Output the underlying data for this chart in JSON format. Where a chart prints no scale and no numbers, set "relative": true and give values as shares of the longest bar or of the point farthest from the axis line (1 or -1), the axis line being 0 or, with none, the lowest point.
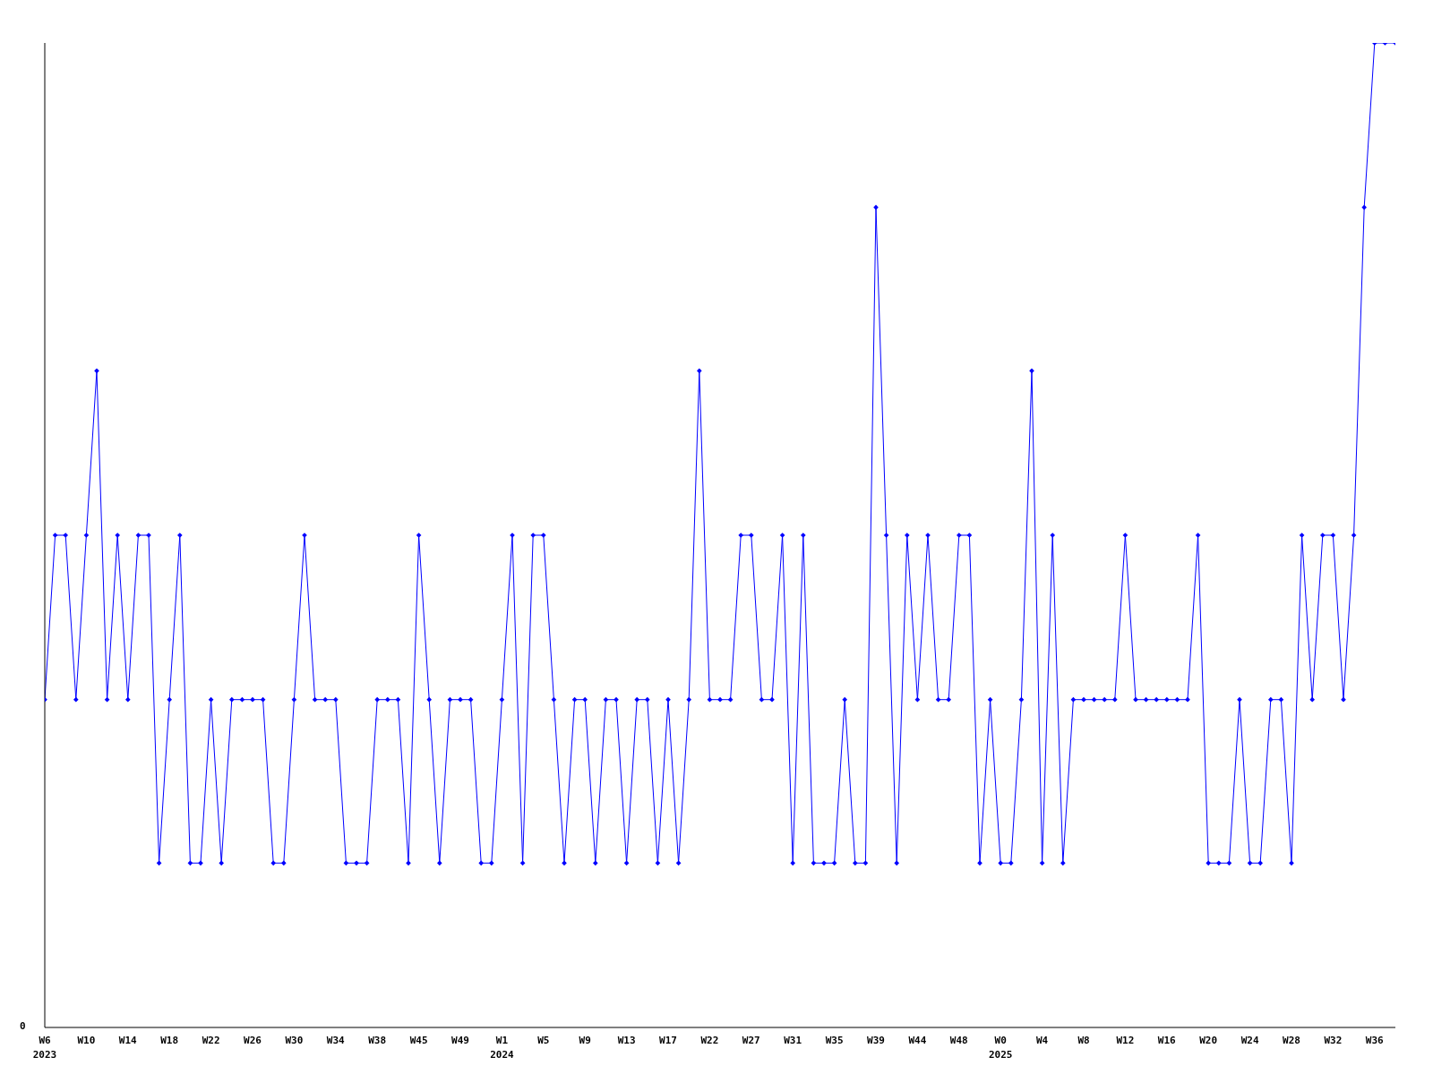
{
  "chart_data": {
    "type": "line",
    "relative": true,
    "marker": "diamond",
    "line_style": "solid",
    "grid": false,
    "categories": [
      "W6\n2023",
      null,
      null,
      null,
      "W10",
      null,
      null,
      null,
      "W14",
      null,
      null,
      null,
      "W18",
      null,
      null,
      null,
      "W22",
      null,
      null,
      null,
      "W26",
      null,
      null,
      null,
      "W30",
      null,
      null,
      null,
      "W34",
      null,
      null,
      null,
      "W38",
      null,
      null,
      null,
      "W45",
      null,
      null,
      null,
      "W49",
      null,
      null,
      null,
      "W1\n2024",
      null,
      null,
      null,
      "W5",
      null,
      null,
      null,
      "W9",
      null,
      null,
      null,
      "W13",
      null,
      null,
      null,
      "W17",
      null,
      null,
      null,
      "W22",
      null,
      null,
      null,
      "W27",
      null,
      null,
      null,
      "W31",
      null,
      null,
      null,
      "W35",
      null,
      null,
      null,
      "W39",
      null,
      null,
      null,
      "W44",
      null,
      null,
      null,
      "W48",
      null,
      null,
      null,
      "W0\n2025",
      null,
      null,
      null,
      "W4",
      null,
      null,
      null,
      "W8",
      null,
      null,
      null,
      "W12",
      null,
      null,
      null,
      "W16",
      null,
      null,
      null,
      "W20",
      null,
      null,
      null,
      "W24",
      null,
      null,
      null,
      "W28",
      null,
      null,
      null,
      "W32",
      null,
      null,
      null,
      "W36",
      null,
      null
    ],
    "series": [
      {
        "color": "#0000ff",
        "values": [
          0.333,
          0.5,
          0.5,
          0.333,
          0.5,
          0.667,
          0.333,
          0.5,
          0.333,
          0.5,
          0.5,
          0.167,
          0.333,
          0.5,
          0.167,
          0.167,
          0.333,
          0.167,
          0.333,
          0.333,
          0.333,
          0.333,
          0.167,
          0.167,
          0.333,
          0.5,
          0.333,
          0.333,
          0.333,
          0.167,
          0.167,
          0.167,
          0.333,
          0.333,
          0.333,
          0.167,
          0.5,
          0.333,
          0.167,
          0.333,
          0.333,
          0.333,
          0.167,
          0.167,
          0.333,
          0.5,
          0.167,
          0.5,
          0.5,
          0.333,
          0.167,
          0.333,
          0.333,
          0.167,
          0.333,
          0.333,
          0.167,
          0.333,
          0.333,
          0.167,
          0.333,
          0.167,
          0.333,
          0.667,
          0.333,
          0.333,
          0.333,
          0.5,
          0.5,
          0.333,
          0.333,
          0.5,
          0.167,
          0.5,
          0.167,
          0.167,
          0.167,
          0.333,
          0.167,
          0.167,
          0.833,
          0.5,
          0.167,
          0.5,
          0.333,
          0.5,
          0.333,
          0.333,
          0.5,
          0.5,
          0.167,
          0.333,
          0.167,
          0.167,
          0.333,
          0.667,
          0.167,
          0.5,
          0.167,
          0.333,
          0.333,
          0.333,
          0.333,
          0.333,
          0.5,
          0.333,
          0.333,
          0.333,
          0.333,
          0.333,
          0.333,
          0.5,
          0.167,
          0.167,
          0.167,
          0.333,
          0.167,
          0.167,
          0.333,
          0.333,
          0.167,
          0.5,
          0.333,
          0.5,
          0.5,
          0.333,
          0.5,
          0.833,
          1,
          1,
          1
        ]
      }
    ],
    "annotations": [
      "0"
    ]
  }
}
